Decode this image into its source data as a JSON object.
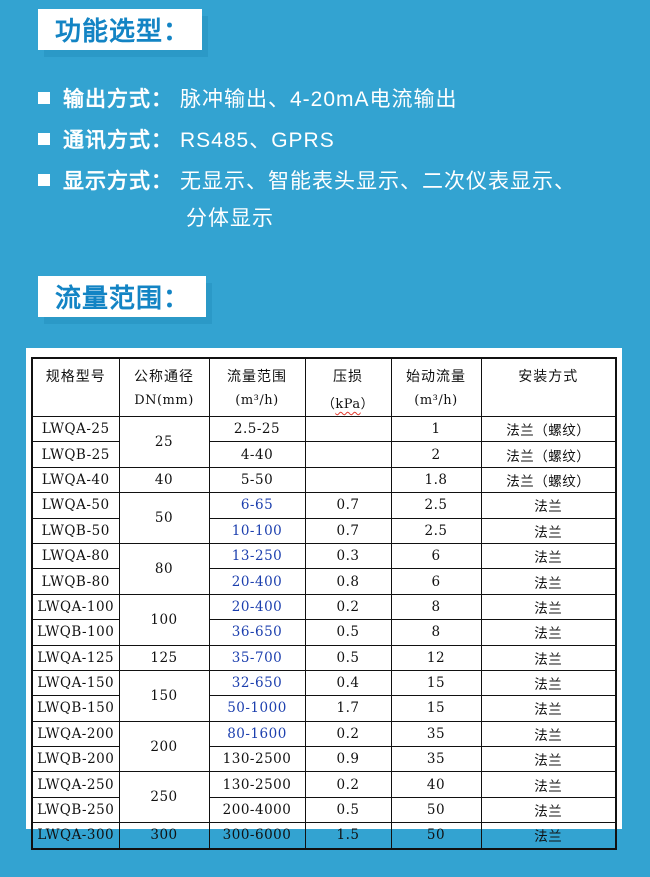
{
  "colors": {
    "background": "#33a3d1",
    "accent_blue": "#1384c4",
    "flow_highlight_blue": "#1c3fae",
    "spellcheck_red": "#e23a2e"
  },
  "section1": {
    "title": "功能选型：",
    "bullets": [
      {
        "label": "输出方式：",
        "text": "脉冲输出、4-20mA电流输出",
        "wrap": ""
      },
      {
        "label": "通讯方式：",
        "text": "RS485、GPRS",
        "wrap": ""
      },
      {
        "label": "显示方式：",
        "text": "无显示、智能表头显示、二次仪表显示、",
        "wrap": "分体显示"
      }
    ]
  },
  "section2": {
    "title": "流量范围："
  },
  "table": {
    "headers": [
      {
        "line1": "规格型号",
        "line2": ""
      },
      {
        "line1": "公称通径",
        "line2": "DN(mm)"
      },
      {
        "line1": "流量范围",
        "line2": "(m³/h)"
      },
      {
        "line1": "压损",
        "line2": "（kPa）",
        "squiggle": "kPa"
      },
      {
        "line1": "始动流量",
        "line2": "(m³/h)"
      },
      {
        "line1": "安装方式",
        "line2": ""
      }
    ],
    "rows": [
      {
        "model": "LWQA-25",
        "dn": "25",
        "dn_span": 2,
        "flow": "2.5-25",
        "flow_blue": false,
        "pressure": "",
        "start_flow": "1",
        "install": "法兰（螺纹）"
      },
      {
        "model": "LWQB-25",
        "dn": null,
        "dn_span": 0,
        "flow": "4-40",
        "flow_blue": false,
        "pressure": "",
        "start_flow": "2",
        "install": "法兰（螺纹）"
      },
      {
        "model": "LWQA-40",
        "dn": "40",
        "dn_span": 1,
        "flow": "5-50",
        "flow_blue": false,
        "pressure": "",
        "start_flow": "1.8",
        "install": "法兰（螺纹）"
      },
      {
        "model": "LWQA-50",
        "dn": "50",
        "dn_span": 2,
        "flow": "6-65",
        "flow_blue": true,
        "pressure": "0.7",
        "start_flow": "2.5",
        "install": "法兰"
      },
      {
        "model": "LWQB-50",
        "dn": null,
        "dn_span": 0,
        "flow": "10-100",
        "flow_blue": true,
        "pressure": "0.7",
        "start_flow": "2.5",
        "install": "法兰"
      },
      {
        "model": "LWQA-80",
        "dn": "80",
        "dn_span": 2,
        "flow": "13-250",
        "flow_blue": true,
        "pressure": "0.3",
        "start_flow": "6",
        "install": "法兰"
      },
      {
        "model": "LWQB-80",
        "dn": null,
        "dn_span": 0,
        "flow": "20-400",
        "flow_blue": true,
        "pressure": "0.8",
        "start_flow": "6",
        "install": "法兰"
      },
      {
        "model": "LWQA-100",
        "dn": "100",
        "dn_span": 2,
        "flow": "20-400",
        "flow_blue": true,
        "pressure": "0.2",
        "start_flow": "8",
        "install": "法兰"
      },
      {
        "model": "LWQB-100",
        "dn": null,
        "dn_span": 0,
        "flow": "36-650",
        "flow_blue": true,
        "pressure": "0.5",
        "start_flow": "8",
        "install": "法兰"
      },
      {
        "model": "LWQA-125",
        "dn": "125",
        "dn_span": 1,
        "flow": "35-700",
        "flow_blue": true,
        "pressure": "0.5",
        "start_flow": "12",
        "install": "法兰"
      },
      {
        "model": "LWQA-150",
        "dn": "150",
        "dn_span": 2,
        "flow": "32-650",
        "flow_blue": true,
        "pressure": "0.4",
        "start_flow": "15",
        "install": "法兰"
      },
      {
        "model": "LWQB-150",
        "dn": null,
        "dn_span": 0,
        "flow": "50-1000",
        "flow_blue": true,
        "pressure": "1.7",
        "start_flow": "15",
        "install": "法兰"
      },
      {
        "model": "LWQA-200",
        "dn": "200",
        "dn_span": 2,
        "flow": "80-1600",
        "flow_blue": true,
        "pressure": "0.2",
        "start_flow": "35",
        "install": "法兰"
      },
      {
        "model": "LWQB-200",
        "dn": null,
        "dn_span": 0,
        "flow": "130-2500",
        "flow_blue": false,
        "pressure": "0.9",
        "start_flow": "35",
        "install": "法兰"
      },
      {
        "model": "LWQA-250",
        "dn": "250",
        "dn_span": 2,
        "flow": "130-2500",
        "flow_blue": false,
        "pressure": "0.2",
        "start_flow": "40",
        "install": "法兰"
      },
      {
        "model": "LWQB-250",
        "dn": null,
        "dn_span": 0,
        "flow": "200-4000",
        "flow_blue": false,
        "pressure": "0.5",
        "start_flow": "50",
        "install": "法兰"
      },
      {
        "model": "LWQA-300",
        "dn": "300",
        "dn_span": 1,
        "flow": "300-6000",
        "flow_blue": false,
        "pressure": "1.5",
        "start_flow": "50",
        "install": "法兰"
      }
    ]
  }
}
